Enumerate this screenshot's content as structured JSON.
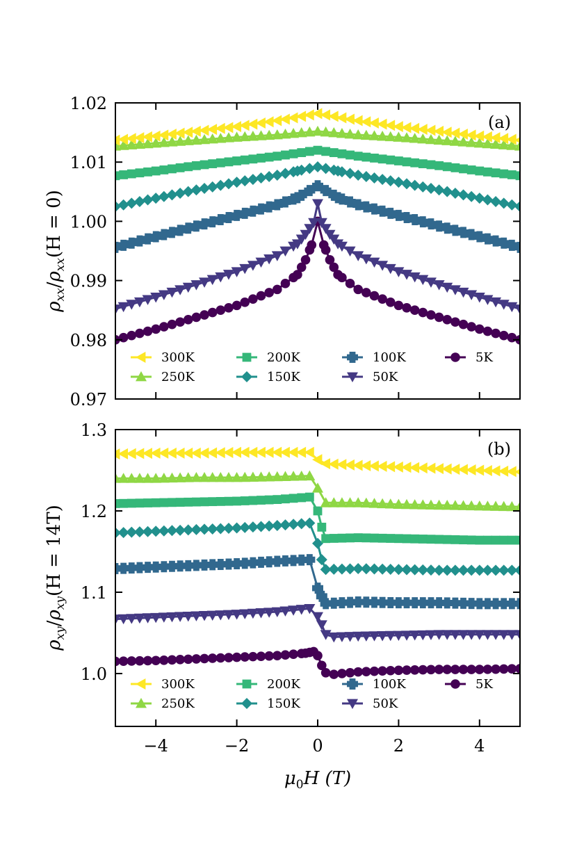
{
  "chart_data": [
    {
      "type": "line",
      "panel_label": "(a)",
      "xlabel": "",
      "ylabel": "ρ_xx/ρ_xx(H = 0)",
      "ylabel_parts": {
        "a": "ρ",
        "b": "xx",
        "c": "/",
        "d": "ρ",
        "e": "xx",
        "f": "(H = 0)"
      },
      "xlim": [
        -5,
        5
      ],
      "ylim": [
        0.97,
        1.02
      ],
      "x_ticks": [
        -4,
        -2,
        0,
        2,
        4
      ],
      "y_ticks": [
        0.97,
        0.98,
        0.99,
        1.0,
        1.01,
        1.02
      ],
      "y_tick_labels": [
        "0.97",
        "0.98",
        "0.99",
        "1.00",
        "1.01",
        "1.02"
      ],
      "legend_position": "lower",
      "series": [
        {
          "name": "300K",
          "color": "#fde725",
          "marker": "triangle-left",
          "x": [
            -5,
            -4,
            -3,
            -2,
            -1,
            0,
            1,
            2,
            3,
            4,
            5
          ],
          "y": [
            1.0137,
            1.0144,
            1.0152,
            1.016,
            1.017,
            1.0182,
            1.017,
            1.016,
            1.0152,
            1.0144,
            1.0137
          ]
        },
        {
          "name": "250K",
          "color": "#8fd744",
          "marker": "triangle-up",
          "x": [
            -5,
            -4,
            -3,
            -2,
            -1,
            0,
            1,
            2,
            3,
            4,
            5
          ],
          "y": [
            1.0127,
            1.0132,
            1.0137,
            1.0142,
            1.0146,
            1.0152,
            1.0146,
            1.0142,
            1.0137,
            1.0132,
            1.0127
          ]
        },
        {
          "name": "200K",
          "color": "#35b779",
          "marker": "square",
          "x": [
            -5,
            -4,
            -3,
            -2,
            -1,
            0,
            1,
            2,
            3,
            4,
            5
          ],
          "y": [
            1.0077,
            1.0085,
            1.0094,
            1.0102,
            1.011,
            1.012,
            1.011,
            1.0102,
            1.0094,
            1.0085,
            1.0077
          ]
        },
        {
          "name": "150K",
          "color": "#21908d",
          "marker": "diamond",
          "x": [
            -5,
            -4,
            -3,
            -2,
            -1,
            -0.5,
            0,
            0.5,
            1,
            2,
            3,
            4,
            5
          ],
          "y": [
            1.0025,
            1.0039,
            1.0053,
            1.0066,
            1.0078,
            1.0085,
            1.0092,
            1.0085,
            1.0078,
            1.0066,
            1.0053,
            1.0039,
            1.0025
          ]
        },
        {
          "name": "100K",
          "color": "#31688e",
          "marker": "plus",
          "x": [
            -5,
            -4,
            -3,
            -2,
            -1,
            -0.5,
            -0.2,
            0,
            0.2,
            0.5,
            1,
            2,
            3,
            4,
            5
          ],
          "y": [
            0.9956,
            0.9974,
            0.9992,
            1.001,
            1.0028,
            1.004,
            1.0052,
            1.006,
            1.0052,
            1.004,
            1.0028,
            1.001,
            0.9992,
            0.9974,
            0.9956
          ]
        },
        {
          "name": "50K",
          "color": "#443983",
          "marker": "triangle-down",
          "x": [
            -5,
            -4,
            -3,
            -2,
            -1,
            -0.5,
            -0.3,
            -0.1,
            0,
            0.1,
            0.3,
            0.5,
            1,
            2,
            3,
            4,
            5
          ],
          "y": [
            0.9852,
            0.9872,
            0.9893,
            0.9915,
            0.9942,
            0.9962,
            0.9978,
            0.9998,
            1.003,
            0.9998,
            0.9978,
            0.9962,
            0.9942,
            0.9915,
            0.9893,
            0.9872,
            0.9852
          ]
        },
        {
          "name": "5K",
          "color": "#440154",
          "marker": "circle",
          "x": [
            -5,
            -4,
            -3,
            -2,
            -1,
            -0.5,
            -0.3,
            -0.15,
            0,
            0.15,
            0.3,
            0.5,
            1,
            2,
            3,
            4,
            5
          ],
          "y": [
            0.98,
            0.9818,
            0.9838,
            0.9858,
            0.9885,
            0.991,
            0.9935,
            0.996,
            1.0,
            0.996,
            0.9935,
            0.991,
            0.9885,
            0.9858,
            0.9838,
            0.9818,
            0.98
          ]
        }
      ]
    },
    {
      "type": "line",
      "panel_label": "(b)",
      "xlabel": "μ₀H (T)",
      "xlabel_parts": {
        "a": "μ",
        "b": "0",
        "c": "H (T)"
      },
      "ylabel": "ρ_xy/ρ_xy(H = 14T)",
      "ylabel_parts": {
        "a": "ρ",
        "b": "xy",
        "c": "/",
        "d": "ρ",
        "e": "xy",
        "f": "(H = 14T)"
      },
      "xlim": [
        -5,
        5
      ],
      "ylim": [
        0.935,
        1.3
      ],
      "x_ticks": [
        -4,
        -2,
        0,
        2,
        4
      ],
      "x_tick_labels": [
        "−4",
        "−2",
        "0",
        "2",
        "4"
      ],
      "y_ticks": [
        1.0,
        1.1,
        1.2,
        1.3
      ],
      "y_tick_labels": [
        "1.0",
        "1.1",
        "1.2",
        "1.3"
      ],
      "legend_position": "lower",
      "series": [
        {
          "name": "300K",
          "color": "#fde725",
          "marker": "triangle-left",
          "x": [
            -5,
            -4,
            -3,
            -2,
            -1,
            -0.2,
            0,
            0.2,
            1,
            2,
            3,
            4,
            5
          ],
          "y": [
            1.27,
            1.271,
            1.271,
            1.272,
            1.272,
            1.272,
            1.263,
            1.258,
            1.256,
            1.254,
            1.252,
            1.25,
            1.248
          ]
        },
        {
          "name": "250K",
          "color": "#8fd744",
          "marker": "triangle-up",
          "x": [
            -5,
            -4,
            -3,
            -2,
            -1,
            -0.2,
            0,
            0.2,
            1,
            2,
            3,
            4,
            5
          ],
          "y": [
            1.24,
            1.24,
            1.241,
            1.241,
            1.242,
            1.243,
            1.228,
            1.21,
            1.21,
            1.208,
            1.207,
            1.206,
            1.205
          ]
        },
        {
          "name": "200K",
          "color": "#35b779",
          "marker": "square",
          "x": [
            -5,
            -4,
            -3,
            -2,
            -1,
            -0.2,
            0,
            0.1,
            0.2,
            1,
            2,
            3,
            4,
            5
          ],
          "y": [
            1.209,
            1.21,
            1.211,
            1.212,
            1.214,
            1.217,
            1.2,
            1.18,
            1.166,
            1.167,
            1.166,
            1.165,
            1.164,
            1.164
          ]
        },
        {
          "name": "150K",
          "color": "#21908d",
          "marker": "diamond",
          "x": [
            -5,
            -4,
            -3,
            -2,
            -1,
            -0.2,
            0,
            0.1,
            0.2,
            1,
            2,
            3,
            4,
            5
          ],
          "y": [
            1.173,
            1.175,
            1.177,
            1.179,
            1.182,
            1.185,
            1.16,
            1.14,
            1.128,
            1.129,
            1.128,
            1.127,
            1.127,
            1.127
          ]
        },
        {
          "name": "100K",
          "color": "#31688e",
          "marker": "plus",
          "x": [
            -5,
            -4,
            -3,
            -2,
            -1,
            -0.2,
            0,
            0.1,
            0.2,
            1,
            2,
            3,
            4,
            5
          ],
          "y": [
            1.129,
            1.131,
            1.133,
            1.135,
            1.138,
            1.14,
            1.105,
            1.095,
            1.086,
            1.088,
            1.087,
            1.087,
            1.086,
            1.086
          ]
        },
        {
          "name": "50K",
          "color": "#443983",
          "marker": "triangle-down",
          "x": [
            -5,
            -4,
            -3,
            -2,
            -1,
            -0.2,
            0,
            0.1,
            0.2,
            0.4,
            1,
            2,
            3,
            4,
            5
          ],
          "y": [
            1.067,
            1.069,
            1.071,
            1.073,
            1.076,
            1.08,
            1.07,
            1.06,
            1.048,
            1.045,
            1.046,
            1.047,
            1.048,
            1.048,
            1.048
          ]
        },
        {
          "name": "5K",
          "color": "#440154",
          "marker": "circle",
          "x": [
            -5,
            -4,
            -3,
            -2,
            -1,
            -0.3,
            -0.1,
            0,
            0.1,
            0.2,
            0.4,
            1,
            2,
            3,
            4,
            5
          ],
          "y": [
            1.015,
            1.016,
            1.018,
            1.02,
            1.022,
            1.025,
            1.027,
            1.022,
            1.01,
            1.001,
            0.999,
            1.002,
            1.004,
            1.005,
            1.005,
            1.006
          ]
        }
      ]
    }
  ]
}
